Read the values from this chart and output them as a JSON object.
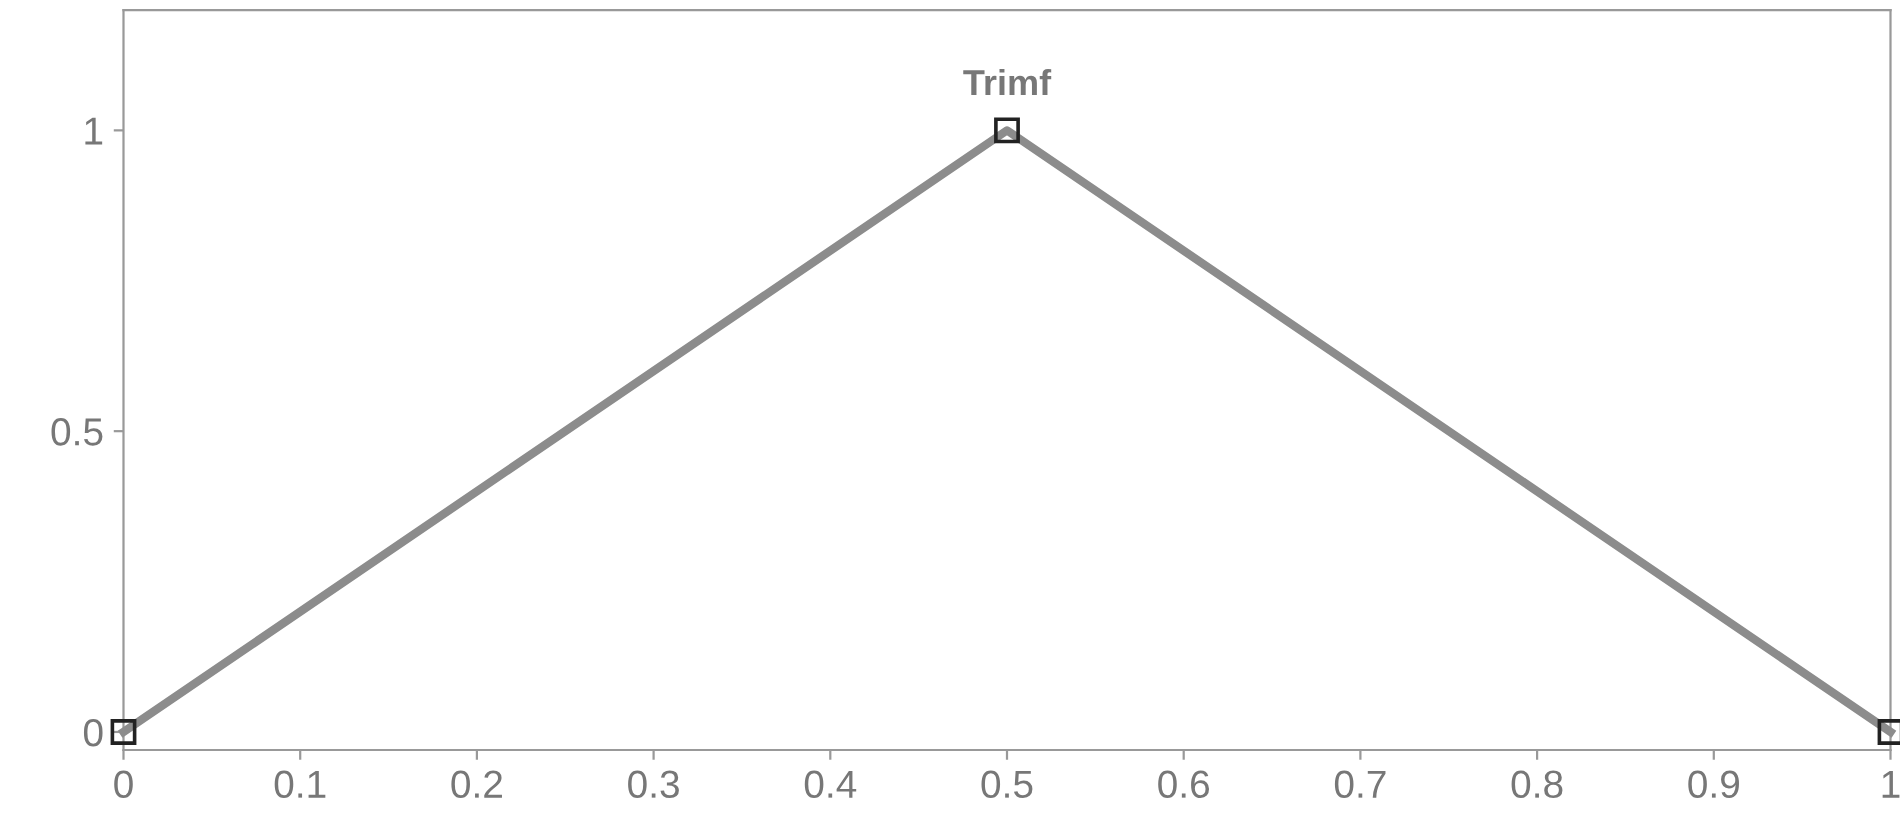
{
  "chart_data": {
    "type": "line",
    "x": [
      0,
      0.5,
      1
    ],
    "series": [
      {
        "color": "#8c8c8c",
        "values": [
          0,
          1,
          0
        ]
      }
    ],
    "marker": "square",
    "annotations": [
      {
        "text": "Trimf",
        "x": 0.5,
        "y": 1
      }
    ],
    "xlim": [
      0,
      1
    ],
    "ylim": [
      -0.03,
      1.2
    ],
    "xticks": [
      0,
      0.1,
      0.2,
      0.3,
      0.4,
      0.5,
      0.6,
      0.7,
      0.8,
      0.9,
      1
    ],
    "yticks": [
      0,
      0.5,
      1
    ],
    "grid": false
  }
}
